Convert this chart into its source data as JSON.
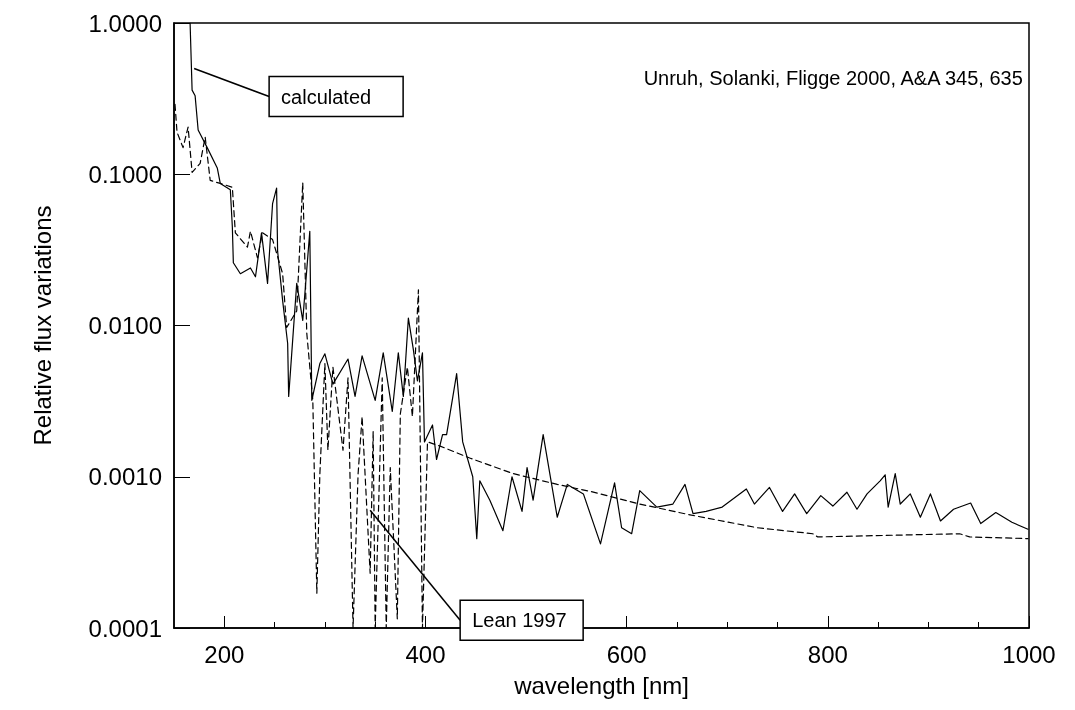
{
  "chart_data": {
    "type": "line",
    "xlabel": "wavelength [nm]",
    "ylabel": "Relative flux variations",
    "log": "y",
    "grid": false,
    "marker": "none",
    "xlim": [
      150,
      1000
    ],
    "xticks": [
      200,
      400,
      600,
      800,
      1000
    ],
    "ylim": [
      0.0001,
      1
    ],
    "yticks": [
      {
        "value": 0.0001,
        "label": "0.0001"
      },
      {
        "value": 0.001,
        "label": "0.0010"
      },
      {
        "value": 0.01,
        "label": "0.0100"
      },
      {
        "value": 0.1,
        "label": "0.1000"
      },
      {
        "value": 1,
        "label": "1.0000"
      }
    ],
    "annotations": [
      "Unruh, Solanki, Fligge 2000, A&A 345, 635",
      {
        "text": "calculated",
        "x": 170,
        "y": 0.5
      },
      {
        "text": "Lean 1997",
        "x": 345,
        "y": 0.0006
      }
    ],
    "series": [
      {
        "color": "#000000",
        "line_style": "solid",
        "x": [
          166,
          168,
          171,
          174,
          183,
          193,
          196,
          206,
          208,
          209,
          216,
          226,
          231,
          237,
          243,
          248,
          252,
          253,
          258,
          263,
          264,
          272,
          278,
          285,
          287,
          295,
          300,
          308,
          323,
          330,
          337,
          350,
          358,
          367,
          373,
          378,
          383,
          388,
          392,
          397,
          399,
          407,
          411,
          417,
          421,
          431,
          437,
          447,
          451,
          454,
          464,
          477,
          486,
          496,
          501,
          507,
          517,
          531,
          541,
          557,
          574,
          588,
          595,
          605,
          613,
          630,
          646,
          658,
          666,
          679,
          695,
          719,
          727,
          742,
          755,
          767,
          779,
          793,
          805,
          819,
          829,
          839,
          852,
          857,
          860,
          867,
          872,
          882,
          892,
          902,
          912,
          925,
          942,
          952,
          967,
          983,
          999
        ],
        "values": [
          1.0,
          0.36,
          0.33,
          0.196,
          0.15,
          0.11,
          0.087,
          0.079,
          0.045,
          0.026,
          0.022,
          0.024,
          0.021,
          0.041,
          0.019,
          0.064,
          0.081,
          0.031,
          0.0146,
          0.0076,
          0.0034,
          0.019,
          0.0108,
          0.042,
          0.0032,
          0.0056,
          0.0065,
          0.0041,
          0.006,
          0.0034,
          0.0063,
          0.0032,
          0.0066,
          0.0027,
          0.0066,
          0.0034,
          0.0112,
          0.0069,
          0.0043,
          0.0066,
          0.0017,
          0.0022,
          0.0013,
          0.0019,
          0.0019,
          0.0048,
          0.0017,
          0.001,
          0.00039,
          0.00094,
          0.0007,
          0.00044,
          0.001,
          0.00059,
          0.00115,
          0.0007,
          0.0019,
          0.00054,
          0.00089,
          0.00077,
          0.00036,
          0.00091,
          0.00046,
          0.00042,
          0.00081,
          0.00063,
          0.00066,
          0.00089,
          0.00057,
          0.00059,
          0.00063,
          0.00083,
          0.00066,
          0.00085,
          0.00059,
          0.00077,
          0.00057,
          0.00075,
          0.00064,
          0.00079,
          0.00061,
          0.00077,
          0.00094,
          0.00103,
          0.00063,
          0.00105,
          0.00066,
          0.00077,
          0.00054,
          0.00077,
          0.00051,
          0.00061,
          0.00067,
          0.00049,
          0.00058,
          0.0005,
          0.00045
        ]
      },
      {
        "color": "#000000",
        "line_style": "dashed",
        "x": [
          151,
          153,
          159,
          164,
          168,
          176,
          181,
          186,
          196,
          208,
          211,
          223,
          226,
          233,
          238,
          248,
          258,
          262,
          272,
          278,
          282,
          288,
          292,
          295,
          300,
          303,
          308,
          318,
          323,
          328,
          333,
          337,
          345,
          348,
          350,
          357,
          361,
          365,
          372,
          375,
          382,
          387,
          393,
          397,
          402,
          414,
          444,
          487,
          531,
          564,
          613,
          663,
          730,
          785,
          790,
          931,
          941,
          999
        ],
        "values": [
          0.29,
          0.19,
          0.15,
          0.205,
          0.103,
          0.118,
          0.176,
          0.091,
          0.087,
          0.082,
          0.041,
          0.033,
          0.042,
          0.028,
          0.041,
          0.037,
          0.022,
          0.0097,
          0.0125,
          0.088,
          0.0089,
          0.0032,
          0.00017,
          0.00104,
          0.0056,
          0.0015,
          0.0053,
          0.0015,
          0.0045,
          0.0001,
          0.00104,
          0.0025,
          0.00023,
          0.002,
          0.0001,
          0.0045,
          0.0001,
          0.00115,
          0.000115,
          0.0026,
          0.0053,
          0.0025,
          0.0172,
          0.0001,
          0.0017,
          0.0016,
          0.00133,
          0.00105,
          0.00089,
          0.0008,
          0.00066,
          0.00056,
          0.00046,
          0.00042,
          0.0004,
          0.00042,
          0.0004,
          0.00039
        ]
      }
    ]
  }
}
